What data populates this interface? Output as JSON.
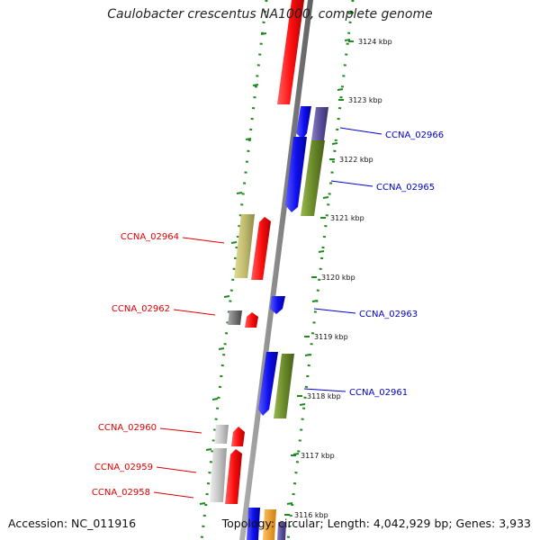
{
  "title": "Caulobacter crescentus NA1000, complete genome",
  "footer": {
    "accession": "Accession: NC_011916",
    "summary": "Topology: circular; Length: 4,042,929 bp; Genes: 3,933"
  },
  "ticks": [
    {
      "label": "3124 kbp",
      "pos": 3124
    },
    {
      "label": "3123 kbp",
      "pos": 3123
    },
    {
      "label": "3122 kbp",
      "pos": 3122
    },
    {
      "label": "3121 kbp",
      "pos": 3121
    },
    {
      "label": "3120 kbp",
      "pos": 3120
    },
    {
      "label": "3119 kbp",
      "pos": 3119
    },
    {
      "label": "3118 kbp",
      "pos": 3118
    },
    {
      "label": "3117 kbp",
      "pos": 3117
    },
    {
      "label": "3116 kbp",
      "pos": 3116
    }
  ],
  "genes": [
    {
      "id": "CCNA_02966",
      "strand": "plus",
      "color": "#0000cc"
    },
    {
      "id": "CCNA_02965",
      "strand": "plus",
      "color": "#0000cc"
    },
    {
      "id": "CCNA_02964",
      "strand": "minus",
      "color": "#dd0000"
    },
    {
      "id": "CCNA_02963",
      "strand": "plus",
      "color": "#0000cc"
    },
    {
      "id": "CCNA_02962",
      "strand": "minus",
      "color": "#dd0000"
    },
    {
      "id": "CCNA_02961",
      "strand": "plus",
      "color": "#0000cc"
    },
    {
      "id": "CCNA_02960",
      "strand": "minus",
      "color": "#dd0000"
    },
    {
      "id": "CCNA_02959",
      "strand": "minus",
      "color": "#dd0000"
    },
    {
      "id": "CCNA_02958",
      "strand": "minus",
      "color": "#dd0000"
    }
  ],
  "colors": {
    "backbone": "#8a8a8a",
    "forward_cds": "#1a1aee",
    "reverse_cds": "#ee1111",
    "cog_purple": "#5a4f9a",
    "cog_olive": "#6b8a2a",
    "cog_khaki": "#c2bd70",
    "cog_gray": "#777777",
    "cog_lightgray": "#c8c8c8",
    "cog_orange": "#f0a020",
    "dots": "#1d8a1d"
  }
}
